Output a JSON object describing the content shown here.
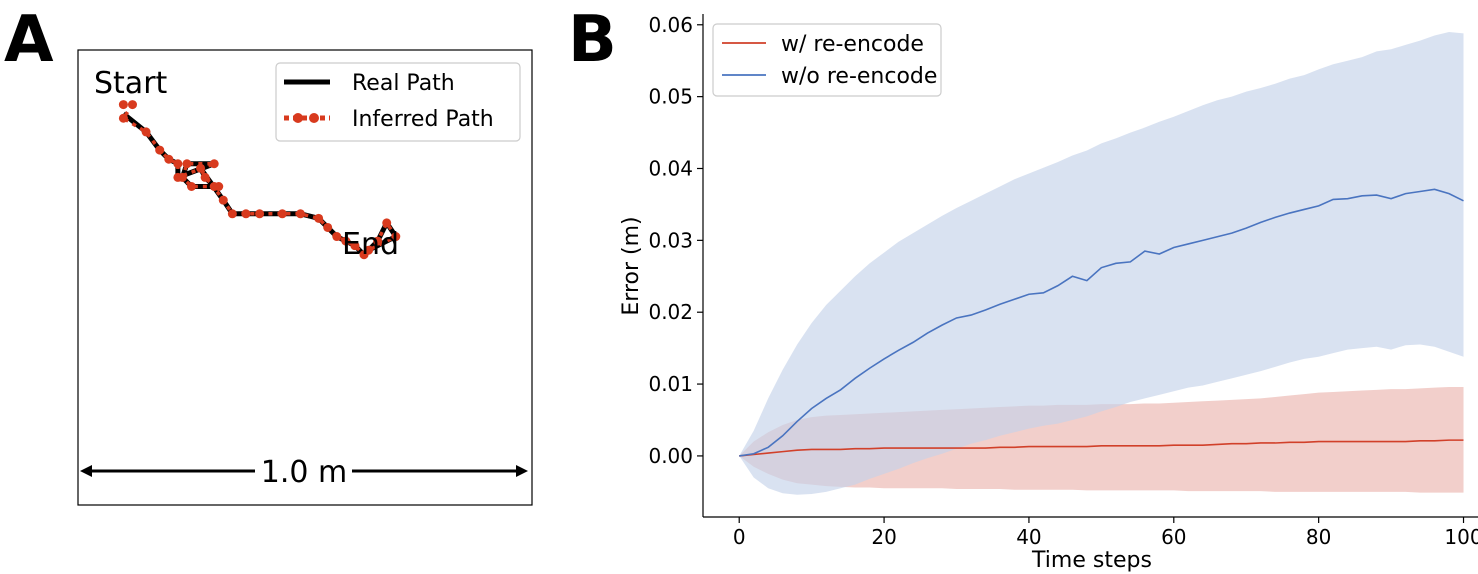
{
  "panels": {
    "a_label": "A",
    "b_label": "B"
  },
  "colors": {
    "real": "#000000",
    "inferred": "#d83a1e",
    "red_line": "#d1402a",
    "red_band": "#e8a7a0",
    "blue_line": "#4a74c0",
    "blue_band": "#bcccE6"
  },
  "chart_data": [
    {
      "type": "line",
      "title": "",
      "start_label": "Start",
      "end_label": "End",
      "scale_label": "1.0 m",
      "legend": [
        "Real Path",
        "Inferred Path"
      ],
      "xlim": [
        0,
        1
      ],
      "ylim": [
        0,
        1
      ],
      "series": [
        {
          "name": "Real Path",
          "x": [
            0.1,
            0.15,
            0.18,
            0.2,
            0.22,
            0.22,
            0.3,
            0.24,
            0.23,
            0.25,
            0.31,
            0.3,
            0.28,
            0.27,
            0.32,
            0.34,
            0.37,
            0.4,
            0.45,
            0.49,
            0.53,
            0.55,
            0.57,
            0.59,
            0.61,
            0.63,
            0.66,
            0.68,
            0.7,
            0.64
          ],
          "y": [
            0.86,
            0.82,
            0.78,
            0.76,
            0.75,
            0.72,
            0.75,
            0.75,
            0.72,
            0.7,
            0.7,
            0.7,
            0.72,
            0.74,
            0.67,
            0.64,
            0.64,
            0.64,
            0.64,
            0.64,
            0.63,
            0.61,
            0.59,
            0.58,
            0.57,
            0.55,
            0.58,
            0.62,
            0.59,
            0.56
          ]
        },
        {
          "name": "Inferred Path",
          "x": [
            0.1,
            0.12,
            0.1,
            0.15,
            0.18,
            0.2,
            0.22,
            0.22,
            0.3,
            0.24,
            0.23,
            0.25,
            0.31,
            0.3,
            0.28,
            0.27,
            0.32,
            0.34,
            0.37,
            0.4,
            0.45,
            0.49,
            0.53,
            0.55,
            0.57,
            0.59,
            0.61,
            0.63,
            0.66,
            0.68,
            0.7,
            0.64
          ],
          "y": [
            0.88,
            0.88,
            0.85,
            0.82,
            0.78,
            0.76,
            0.75,
            0.72,
            0.75,
            0.75,
            0.72,
            0.7,
            0.7,
            0.7,
            0.72,
            0.74,
            0.67,
            0.64,
            0.64,
            0.64,
            0.64,
            0.64,
            0.63,
            0.61,
            0.59,
            0.58,
            0.57,
            0.55,
            0.58,
            0.62,
            0.59,
            0.56
          ]
        }
      ]
    },
    {
      "type": "line",
      "title": "",
      "xlabel": "Time steps",
      "ylabel": "Error (m)",
      "xlim": [
        -5,
        102
      ],
      "ylim": [
        -0.0085,
        0.0615
      ],
      "xticks": [
        0,
        20,
        40,
        60,
        80,
        100
      ],
      "xtick_labels": [
        "0",
        "20",
        "40",
        "60",
        "80",
        "100"
      ],
      "yticks": [
        0.0,
        0.01,
        0.02,
        0.03,
        0.04,
        0.05,
        0.06
      ],
      "ytick_labels": [
        "0.00",
        "0.01",
        "0.02",
        "0.03",
        "0.04",
        "0.05",
        "0.06"
      ],
      "legend": [
        "w/ re-encode",
        "w/o re-encode"
      ],
      "x": [
        0,
        2,
        4,
        6,
        8,
        10,
        12,
        14,
        16,
        18,
        20,
        22,
        24,
        26,
        28,
        30,
        32,
        34,
        36,
        38,
        40,
        42,
        44,
        46,
        48,
        50,
        52,
        54,
        56,
        58,
        60,
        62,
        64,
        66,
        68,
        70,
        72,
        74,
        76,
        78,
        80,
        82,
        84,
        86,
        88,
        90,
        92,
        94,
        96,
        98,
        100
      ],
      "series": [
        {
          "name": "w/ re-encode",
          "mean": [
            0.0,
            0.0002,
            0.0004,
            0.0006,
            0.0008,
            0.0009,
            0.0009,
            0.0009,
            0.001,
            0.001,
            0.0011,
            0.0011,
            0.0011,
            0.0011,
            0.0011,
            0.0011,
            0.0011,
            0.0011,
            0.0012,
            0.0012,
            0.0013,
            0.0013,
            0.0013,
            0.0013,
            0.0013,
            0.0014,
            0.0014,
            0.0014,
            0.0014,
            0.0014,
            0.0015,
            0.0015,
            0.0015,
            0.0016,
            0.0017,
            0.0017,
            0.0018,
            0.0018,
            0.0019,
            0.0019,
            0.002,
            0.002,
            0.002,
            0.002,
            0.002,
            0.002,
            0.002,
            0.0021,
            0.0021,
            0.0022,
            0.0022
          ],
          "lower": [
            0.0,
            -0.0015,
            -0.0025,
            -0.0033,
            -0.0038,
            -0.004,
            -0.0042,
            -0.0043,
            -0.0044,
            -0.0044,
            -0.0045,
            -0.0045,
            -0.0045,
            -0.0045,
            -0.0045,
            -0.0046,
            -0.0046,
            -0.0046,
            -0.0046,
            -0.0047,
            -0.0047,
            -0.0047,
            -0.0047,
            -0.0047,
            -0.0048,
            -0.0048,
            -0.0048,
            -0.0048,
            -0.0048,
            -0.0048,
            -0.0048,
            -0.0049,
            -0.0049,
            -0.0049,
            -0.0049,
            -0.0049,
            -0.0049,
            -0.005,
            -0.005,
            -0.005,
            -0.005,
            -0.005,
            -0.005,
            -0.005,
            -0.005,
            -0.005,
            -0.005,
            -0.0051,
            -0.0051,
            -0.0051,
            -0.0051
          ],
          "upper": [
            0.0,
            0.002,
            0.0033,
            0.0043,
            0.005,
            0.0054,
            0.0056,
            0.0057,
            0.0058,
            0.0059,
            0.006,
            0.0061,
            0.0062,
            0.0063,
            0.0064,
            0.0065,
            0.0066,
            0.0067,
            0.0068,
            0.0069,
            0.007,
            0.007,
            0.0071,
            0.0071,
            0.0071,
            0.0072,
            0.0072,
            0.0072,
            0.0073,
            0.0073,
            0.0074,
            0.0075,
            0.0076,
            0.0077,
            0.0078,
            0.0079,
            0.008,
            0.0082,
            0.0084,
            0.0086,
            0.0088,
            0.0089,
            0.009,
            0.0091,
            0.0092,
            0.0093,
            0.0093,
            0.0094,
            0.0095,
            0.0096,
            0.0096
          ]
        },
        {
          "name": "w/o re-encode",
          "mean": [
            0.0,
            0.0003,
            0.0012,
            0.0028,
            0.0048,
            0.0066,
            0.008,
            0.0092,
            0.0108,
            0.0122,
            0.0135,
            0.0147,
            0.0158,
            0.0171,
            0.0182,
            0.0192,
            0.0196,
            0.0203,
            0.0211,
            0.0218,
            0.0225,
            0.0227,
            0.0237,
            0.025,
            0.0244,
            0.0262,
            0.0268,
            0.027,
            0.0285,
            0.0281,
            0.029,
            0.0295,
            0.03,
            0.0305,
            0.031,
            0.0317,
            0.0325,
            0.0332,
            0.0338,
            0.0343,
            0.0348,
            0.0357,
            0.0358,
            0.0362,
            0.0363,
            0.0358,
            0.0365,
            0.0368,
            0.0371,
            0.0365,
            0.0355
          ],
          "lower": [
            0.0,
            -0.003,
            -0.0045,
            -0.0052,
            -0.0054,
            -0.0053,
            -0.005,
            -0.0045,
            -0.004,
            -0.0032,
            -0.0025,
            -0.0018,
            -0.001,
            -0.0003,
            0.0003,
            0.001,
            0.0017,
            0.0022,
            0.0028,
            0.0033,
            0.0038,
            0.0042,
            0.0045,
            0.005,
            0.0055,
            0.0062,
            0.0068,
            0.0075,
            0.008,
            0.0085,
            0.009,
            0.0095,
            0.0098,
            0.0103,
            0.0108,
            0.0113,
            0.0118,
            0.0124,
            0.013,
            0.0135,
            0.0138,
            0.0143,
            0.0148,
            0.015,
            0.0152,
            0.0148,
            0.0154,
            0.0155,
            0.0152,
            0.0145,
            0.0138
          ],
          "upper": [
            0.0,
            0.0035,
            0.008,
            0.012,
            0.0155,
            0.0185,
            0.021,
            0.023,
            0.025,
            0.0268,
            0.0283,
            0.0298,
            0.031,
            0.0322,
            0.0334,
            0.0345,
            0.0355,
            0.0365,
            0.0375,
            0.0385,
            0.0393,
            0.0401,
            0.0409,
            0.0418,
            0.0425,
            0.0435,
            0.0442,
            0.045,
            0.0457,
            0.0465,
            0.0472,
            0.048,
            0.0488,
            0.0495,
            0.05,
            0.0507,
            0.0512,
            0.0518,
            0.0525,
            0.053,
            0.0538,
            0.0545,
            0.055,
            0.0555,
            0.0563,
            0.0566,
            0.0572,
            0.0578,
            0.0585,
            0.059,
            0.0588
          ]
        }
      ]
    }
  ]
}
